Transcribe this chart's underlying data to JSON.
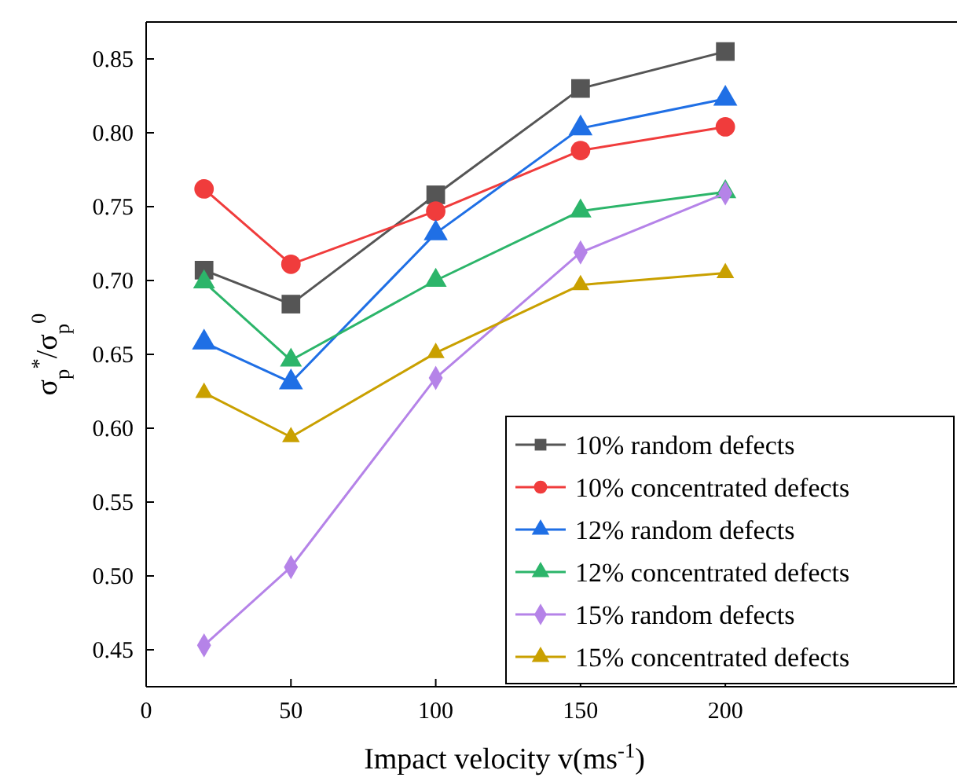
{
  "chart_data": {
    "type": "line",
    "xlabel": "Impact velocity v(ms$^{-1}$)",
    "ylabel": "σ$_{p}$$^{*}$/σ$_{p}$$^{0}$",
    "x": [
      20,
      50,
      100,
      150,
      200
    ],
    "xlim": [
      0,
      280
    ],
    "xticks": [
      0,
      50,
      100,
      150,
      200
    ],
    "ylim": [
      0.425,
      0.875
    ],
    "yticks": [
      0.45,
      {
        "value": 0.5,
        "label": "0.50"
      },
      0.55,
      {
        "value": 0.6,
        "label": "0.60"
      },
      0.65,
      {
        "value": 0.7,
        "label": "0.70"
      },
      0.75,
      {
        "value": 0.8,
        "label": "0.80"
      },
      0.85
    ],
    "legend": "bottom right",
    "grid": false,
    "line_style": "solid",
    "series": [
      {
        "name": "10% random defects",
        "color": "#555555",
        "marker": "square",
        "values": [
          0.707,
          0.684,
          0.758,
          0.83,
          0.855
        ]
      },
      {
        "name": "10% concentrated defects",
        "color": "#f03c3c",
        "marker": "circle",
        "values": [
          0.762,
          0.711,
          0.747,
          0.788,
          0.804
        ]
      },
      {
        "name": "12% random defects",
        "color": "#1f6fe5",
        "marker": "triangle",
        "values": [
          0.658,
          0.631,
          0.732,
          0.803,
          0.823
        ]
      },
      {
        "name": "12% concentrated defects",
        "color": "#2cb56a",
        "marker": "triangle",
        "values": [
          0.699,
          0.646,
          0.7,
          0.747,
          0.76
        ]
      },
      {
        "name": "15% random defects",
        "color": "#b583e8",
        "marker": "diamond",
        "values": [
          0.453,
          0.506,
          0.634,
          0.719,
          0.759
        ]
      },
      {
        "name": "15% concentrated defects",
        "color": "#c9a000",
        "marker": "triangle",
        "values": [
          0.624,
          0.594,
          0.651,
          0.697,
          0.705
        ]
      }
    ]
  }
}
